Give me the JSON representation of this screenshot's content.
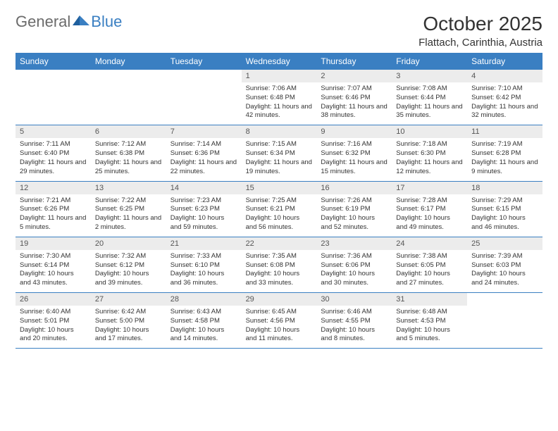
{
  "brand": {
    "general": "General",
    "blue": "Blue"
  },
  "title": "October 2025",
  "subtitle": "Flattach, Carinthia, Austria",
  "colors": {
    "accent": "#3a7fc2",
    "header_bg": "#3a7fc2",
    "header_text": "#ffffff",
    "daynum_bg": "#ececec",
    "border": "#3a7fc2",
    "text": "#333333",
    "logo_gray": "#6b6b6b"
  },
  "day_labels": [
    "Sunday",
    "Monday",
    "Tuesday",
    "Wednesday",
    "Thursday",
    "Friday",
    "Saturday"
  ],
  "weeks": [
    [
      null,
      null,
      null,
      {
        "n": "1",
        "sunrise": "7:06 AM",
        "sunset": "6:48 PM",
        "daylight": "11 hours and 42 minutes."
      },
      {
        "n": "2",
        "sunrise": "7:07 AM",
        "sunset": "6:46 PM",
        "daylight": "11 hours and 38 minutes."
      },
      {
        "n": "3",
        "sunrise": "7:08 AM",
        "sunset": "6:44 PM",
        "daylight": "11 hours and 35 minutes."
      },
      {
        "n": "4",
        "sunrise": "7:10 AM",
        "sunset": "6:42 PM",
        "daylight": "11 hours and 32 minutes."
      }
    ],
    [
      {
        "n": "5",
        "sunrise": "7:11 AM",
        "sunset": "6:40 PM",
        "daylight": "11 hours and 29 minutes."
      },
      {
        "n": "6",
        "sunrise": "7:12 AM",
        "sunset": "6:38 PM",
        "daylight": "11 hours and 25 minutes."
      },
      {
        "n": "7",
        "sunrise": "7:14 AM",
        "sunset": "6:36 PM",
        "daylight": "11 hours and 22 minutes."
      },
      {
        "n": "8",
        "sunrise": "7:15 AM",
        "sunset": "6:34 PM",
        "daylight": "11 hours and 19 minutes."
      },
      {
        "n": "9",
        "sunrise": "7:16 AM",
        "sunset": "6:32 PM",
        "daylight": "11 hours and 15 minutes."
      },
      {
        "n": "10",
        "sunrise": "7:18 AM",
        "sunset": "6:30 PM",
        "daylight": "11 hours and 12 minutes."
      },
      {
        "n": "11",
        "sunrise": "7:19 AM",
        "sunset": "6:28 PM",
        "daylight": "11 hours and 9 minutes."
      }
    ],
    [
      {
        "n": "12",
        "sunrise": "7:21 AM",
        "sunset": "6:26 PM",
        "daylight": "11 hours and 5 minutes."
      },
      {
        "n": "13",
        "sunrise": "7:22 AM",
        "sunset": "6:25 PM",
        "daylight": "11 hours and 2 minutes."
      },
      {
        "n": "14",
        "sunrise": "7:23 AM",
        "sunset": "6:23 PM",
        "daylight": "10 hours and 59 minutes."
      },
      {
        "n": "15",
        "sunrise": "7:25 AM",
        "sunset": "6:21 PM",
        "daylight": "10 hours and 56 minutes."
      },
      {
        "n": "16",
        "sunrise": "7:26 AM",
        "sunset": "6:19 PM",
        "daylight": "10 hours and 52 minutes."
      },
      {
        "n": "17",
        "sunrise": "7:28 AM",
        "sunset": "6:17 PM",
        "daylight": "10 hours and 49 minutes."
      },
      {
        "n": "18",
        "sunrise": "7:29 AM",
        "sunset": "6:15 PM",
        "daylight": "10 hours and 46 minutes."
      }
    ],
    [
      {
        "n": "19",
        "sunrise": "7:30 AM",
        "sunset": "6:14 PM",
        "daylight": "10 hours and 43 minutes."
      },
      {
        "n": "20",
        "sunrise": "7:32 AM",
        "sunset": "6:12 PM",
        "daylight": "10 hours and 39 minutes."
      },
      {
        "n": "21",
        "sunrise": "7:33 AM",
        "sunset": "6:10 PM",
        "daylight": "10 hours and 36 minutes."
      },
      {
        "n": "22",
        "sunrise": "7:35 AM",
        "sunset": "6:08 PM",
        "daylight": "10 hours and 33 minutes."
      },
      {
        "n": "23",
        "sunrise": "7:36 AM",
        "sunset": "6:06 PM",
        "daylight": "10 hours and 30 minutes."
      },
      {
        "n": "24",
        "sunrise": "7:38 AM",
        "sunset": "6:05 PM",
        "daylight": "10 hours and 27 minutes."
      },
      {
        "n": "25",
        "sunrise": "7:39 AM",
        "sunset": "6:03 PM",
        "daylight": "10 hours and 24 minutes."
      }
    ],
    [
      {
        "n": "26",
        "sunrise": "6:40 AM",
        "sunset": "5:01 PM",
        "daylight": "10 hours and 20 minutes."
      },
      {
        "n": "27",
        "sunrise": "6:42 AM",
        "sunset": "5:00 PM",
        "daylight": "10 hours and 17 minutes."
      },
      {
        "n": "28",
        "sunrise": "6:43 AM",
        "sunset": "4:58 PM",
        "daylight": "10 hours and 14 minutes."
      },
      {
        "n": "29",
        "sunrise": "6:45 AM",
        "sunset": "4:56 PM",
        "daylight": "10 hours and 11 minutes."
      },
      {
        "n": "30",
        "sunrise": "6:46 AM",
        "sunset": "4:55 PM",
        "daylight": "10 hours and 8 minutes."
      },
      {
        "n": "31",
        "sunrise": "6:48 AM",
        "sunset": "4:53 PM",
        "daylight": "10 hours and 5 minutes."
      },
      null
    ]
  ],
  "labels": {
    "sunrise_prefix": "Sunrise: ",
    "sunset_prefix": "Sunset: ",
    "daylight_prefix": "Daylight: "
  }
}
